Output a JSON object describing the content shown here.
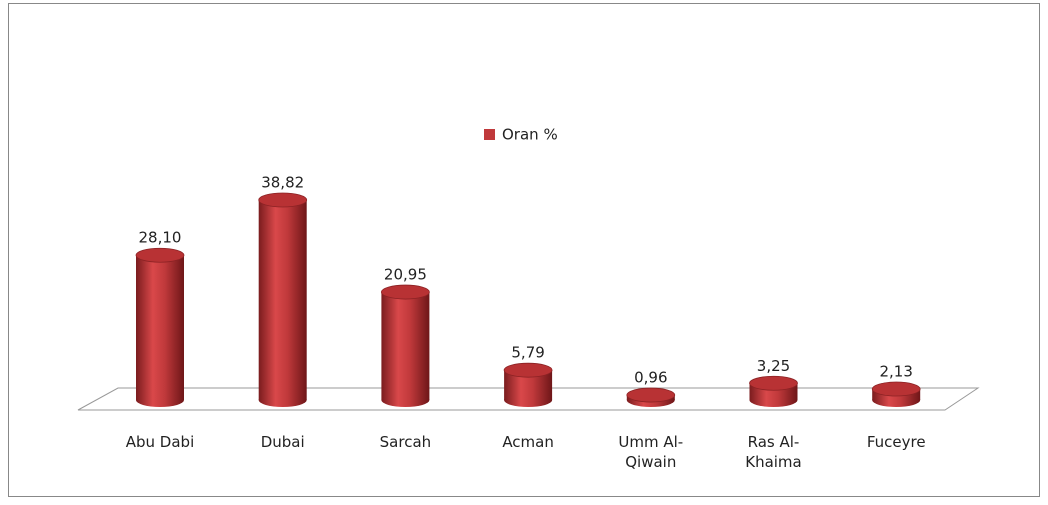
{
  "chart_data": {
    "type": "bar",
    "categories": [
      "Abu Dabi",
      "Dubai",
      "Sarcah",
      "Acman",
      "Umm Al-Qiwain",
      "Ras Al-Khaima",
      "Fuceyre"
    ],
    "series": [
      {
        "name": "Oran %",
        "color": "#c0393b",
        "values": [
          28.1,
          38.82,
          20.95,
          5.79,
          0.96,
          3.25,
          2.13
        ],
        "value_labels": [
          "28,10",
          "38,82",
          "20,95",
          "5,79",
          "0,96",
          "3,25",
          "2,13"
        ]
      }
    ],
    "legend": "top"
  }
}
